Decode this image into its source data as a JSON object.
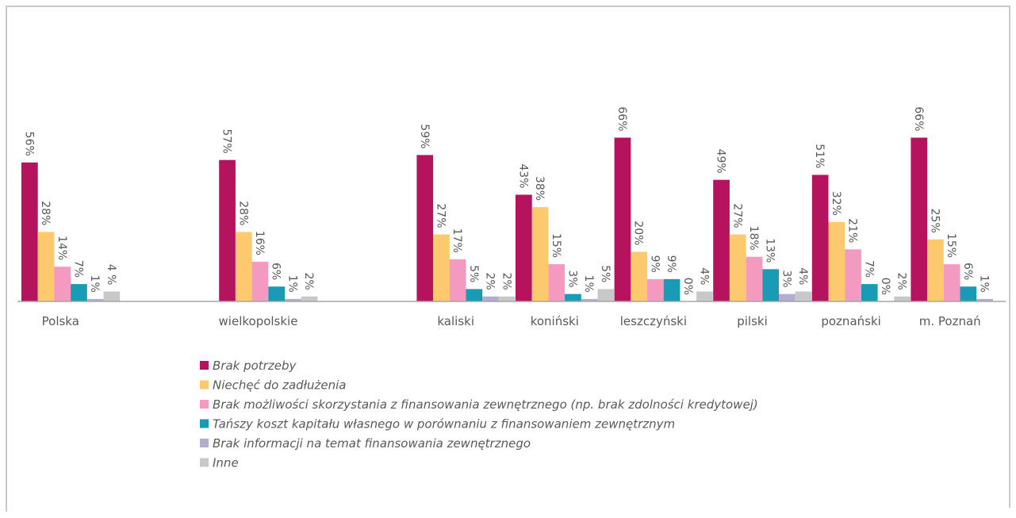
{
  "chart_data": {
    "type": "bar",
    "categories": [
      "Polska",
      null,
      "wielkopolskie",
      null,
      "kaliski",
      "koniński",
      "leszczyński",
      "pilski",
      "poznański",
      "m. Poznań"
    ],
    "ylim": [
      0,
      70
    ],
    "legend": "bottom",
    "series": [
      {
        "name": "Brak potrzeby",
        "color": "#b5135d",
        "values": [
          56,
          null,
          57,
          null,
          59,
          43,
          66,
          49,
          51,
          66
        ],
        "value_labels": [
          "56%",
          null,
          "57%",
          null,
          "59%",
          "43%",
          "66%",
          "49%",
          "51%",
          "66%"
        ]
      },
      {
        "name": "Niechęć do zadłużenia",
        "color": "#fdc96e",
        "values": [
          28,
          null,
          28,
          null,
          27,
          38,
          20,
          27,
          32,
          25
        ],
        "value_labels": [
          "28%",
          null,
          "28%",
          null,
          "27%",
          "38%",
          "20%",
          "27%",
          "32%",
          "25%"
        ]
      },
      {
        "name": "Brak możliwości skorzystania z finansowania zewnętrznego (np. brak zdolności kredytowej)",
        "color": "#f49ac1",
        "values": [
          14,
          null,
          16,
          null,
          17,
          15,
          9,
          18,
          21,
          15
        ],
        "value_labels": [
          "14%",
          null,
          "16%",
          null,
          "17%",
          "15%",
          "9%",
          "18%",
          "21%",
          "15%"
        ]
      },
      {
        "name": "Tańszy koszt kapitału własnego w porównaniu z finansowaniem zewnętrznym",
        "color": "#1a9bb5",
        "values": [
          7,
          null,
          6,
          null,
          5,
          3,
          9,
          13,
          7,
          6
        ],
        "value_labels": [
          "7%",
          null,
          "6%",
          null,
          "5%",
          "3%",
          "9%",
          "13%",
          "7%",
          "6%"
        ]
      },
      {
        "name": "Brak informacji na temat finansowania zewnętrznego",
        "color": "#b3acd0",
        "values": [
          1,
          null,
          1,
          null,
          2,
          1,
          0,
          3,
          0,
          1
        ],
        "value_labels": [
          "1%",
          null,
          "1%",
          null,
          "2%",
          "1%",
          "0%",
          "3%",
          "0%",
          "1%"
        ]
      },
      {
        "name": "Inne",
        "color": "#c8c8c8",
        "values": [
          4,
          null,
          2,
          null,
          2,
          5,
          4,
          4,
          2,
          null
        ],
        "value_labels": [
          "4 %",
          null,
          "2%",
          null,
          "2%",
          "5%",
          "4%",
          "4%",
          "2%",
          null
        ]
      }
    ]
  }
}
